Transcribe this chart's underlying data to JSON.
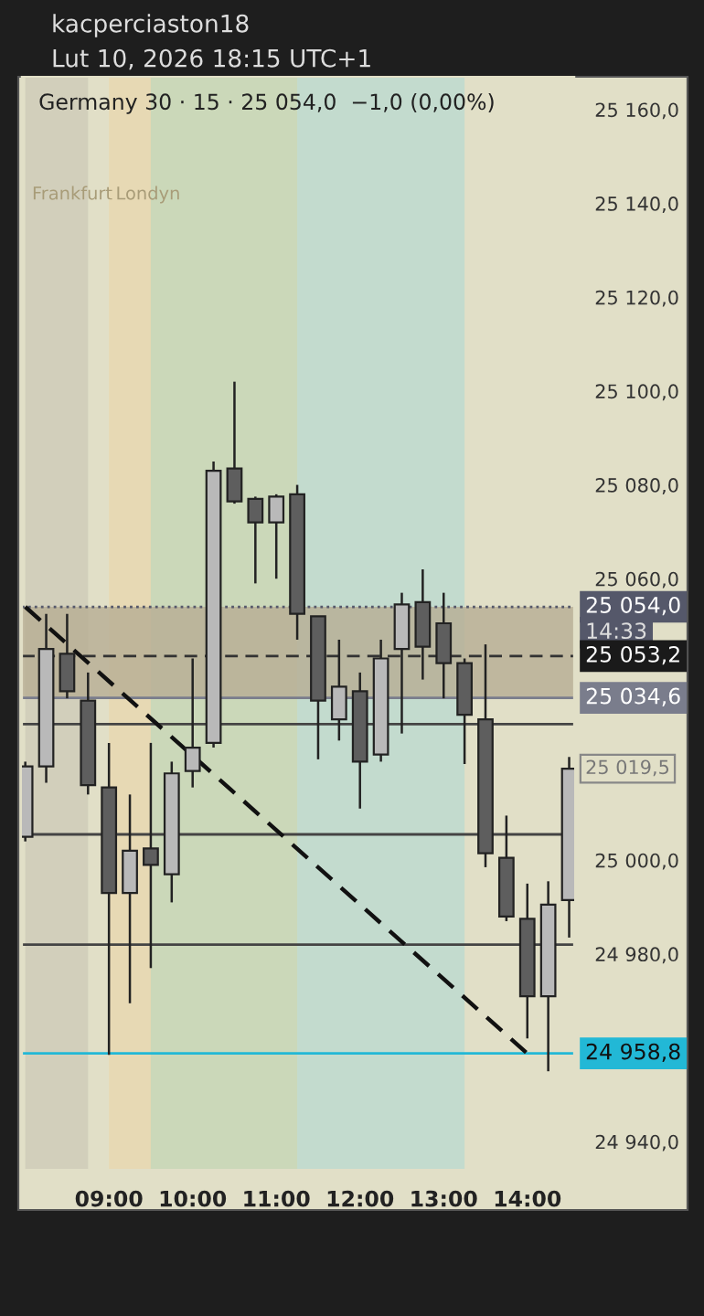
{
  "chart_data": {
    "type": "candlestick",
    "title": "kacperciaston18",
    "subtitle": "Lut 10, 2026 18:15 UTC+1",
    "x": [
      8.0,
      8.25,
      8.5,
      8.75,
      9.0,
      9.25,
      9.5,
      9.75,
      10.0,
      10.25,
      10.5,
      10.75,
      11.0,
      11.25,
      11.5,
      11.75,
      12.0,
      12.25,
      12.5,
      12.75,
      13.0,
      13.25,
      13.5,
      13.75,
      14.0,
      14.25,
      14.5
    ],
    "ohlc": [
      [
        25005,
        25021,
        25004,
        25020
      ],
      [
        25020,
        25052.5,
        25016.5,
        25045
      ],
      [
        25044,
        25052.5,
        25034.5,
        25036
      ],
      [
        25034,
        25040,
        25014,
        25016
      ],
      [
        25015.5,
        25025,
        24958.5,
        24993
      ],
      [
        24993,
        25014,
        24969.5,
        25002
      ],
      [
        25002.5,
        25025,
        24977,
        24999
      ],
      [
        24997,
        25021,
        24991,
        25018.5
      ],
      [
        25019,
        25043,
        25015.5,
        25024
      ],
      [
        25025,
        25085,
        25024,
        25083
      ],
      [
        25083.5,
        25102,
        25076,
        25076.5
      ],
      [
        25077,
        25077.5,
        25059,
        25072
      ],
      [
        25072,
        25078,
        25060,
        25077.5
      ],
      [
        25078,
        25080,
        25047,
        25052.5
      ],
      [
        25052,
        25052,
        25021.5,
        25034
      ],
      [
        25030,
        25047,
        25025.5,
        25037
      ],
      [
        25036,
        25040,
        25011,
        25021
      ],
      [
        25022.5,
        25047,
        25021,
        25043
      ],
      [
        25045,
        25057,
        25027,
        25054.5
      ],
      [
        25055,
        25062,
        25038.5,
        25045.5
      ],
      [
        25050.5,
        25057,
        25034.5,
        25042
      ],
      [
        25042,
        25043,
        25020.5,
        25031
      ],
      [
        25030,
        25046,
        24998.5,
        25001.5
      ],
      [
        25000.5,
        25009.5,
        24987,
        24988
      ],
      [
        24987.5,
        24995,
        24962,
        24971
      ],
      [
        24971,
        24995.5,
        24955,
        24990.5
      ],
      [
        24991.5,
        25022,
        24983.5,
        25019.5
      ]
    ],
    "colors": [
      "#b9b9b9",
      "#b9b9b9",
      "#5e5e5e",
      "#5e5e5e",
      "#5e5e5e",
      "#b9b9b9",
      "#5e5e5e",
      "#b9b9b9",
      "#b9b9b9",
      "#b9b9b9",
      "#5e5e5e",
      "#5e5e5e",
      "#b9b9b9",
      "#5e5e5e",
      "#5e5e5e",
      "#b9b9b9",
      "#5e5e5e",
      "#b9b9b9",
      "#b9b9b9",
      "#5e5e5e",
      "#5e5e5e",
      "#5e5e5e",
      "#5e5e5e",
      "#5e5e5e",
      "#5e5e5e",
      "#b9b9b9",
      "#b9b9b9"
    ],
    "series": [
      {
        "type": "line",
        "x": [
          8.0,
          14.0
        ],
        "values": [
          25054,
          24958.8
        ],
        "color": "#111111",
        "line_style": "dashed"
      }
    ],
    "xlim": [
      7.96,
      14.56
    ],
    "xticks": [
      {
        "value": 9,
        "label": "09:00"
      },
      {
        "value": 10,
        "label": "10:00"
      },
      {
        "value": 11,
        "label": "11:00"
      },
      {
        "value": 12,
        "label": "12:00"
      },
      {
        "value": 13,
        "label": "13:00"
      },
      {
        "value": 14,
        "label": "14:00"
      }
    ],
    "ylim": [
      24934,
      25167
    ],
    "yticks": [
      {
        "value": 24940,
        "label": "24 940,0"
      },
      {
        "value": 24980,
        "label": "24 980,0"
      },
      {
        "value": 25000,
        "label": "25 000,0"
      },
      {
        "value": 25060,
        "label": "25 060,0"
      },
      {
        "value": 25080,
        "label": "25 080,0"
      },
      {
        "value": 25100,
        "label": "25 100,0"
      },
      {
        "value": 25120,
        "label": "25 120,0"
      },
      {
        "value": 25140,
        "label": "25 140,0"
      },
      {
        "value": 25160,
        "label": "25 160,0"
      }
    ],
    "bands": [
      {
        "axis": "x",
        "from": 8.0,
        "to": 8.75,
        "label": "Frankfurt",
        "color": "#cfcdb8"
      },
      {
        "axis": "x",
        "from": 9.0,
        "to": 11.25,
        "label": "Londyn",
        "color": "#e8d8b0"
      },
      {
        "axis": "x",
        "from": 9.5,
        "to": 11.25,
        "color": "#c6d7ba"
      },
      {
        "axis": "x",
        "from": 11.25,
        "to": 13.25,
        "color": "#bddbcf"
      },
      {
        "axis": "y",
        "from": 25034.6,
        "to": 25054,
        "color": "#b7ad93"
      }
    ],
    "ref_lines": [
      {
        "axis": "y",
        "value": 25054,
        "label": "25 054,0",
        "color": "#55586a",
        "line_style": "dotted"
      },
      {
        "axis": "y",
        "value": 25043.5,
        "color": "#333333",
        "line_style": "dashed"
      },
      {
        "axis": "y",
        "value": 25034.6,
        "label": "25 034,6",
        "color": "#7a7d8c",
        "line_style": "solid"
      },
      {
        "axis": "y",
        "value": 25029,
        "color": "#444444",
        "line_style": "solid"
      },
      {
        "axis": "y",
        "value": 25005.5,
        "color": "#444444",
        "line_style": "solid"
      },
      {
        "axis": "y",
        "value": 24982,
        "color": "#444444",
        "line_style": "solid"
      },
      {
        "axis": "y",
        "value": 24958.8,
        "label": "24 958,8",
        "color": "#22b8d6",
        "line_style": "solid"
      }
    ],
    "annotations": [
      "Germany 30 · 15 · 25 054,0  −1,0 (0,00%)",
      "14:33",
      "25 053,2",
      "25 019,5"
    ],
    "grid": false
  }
}
